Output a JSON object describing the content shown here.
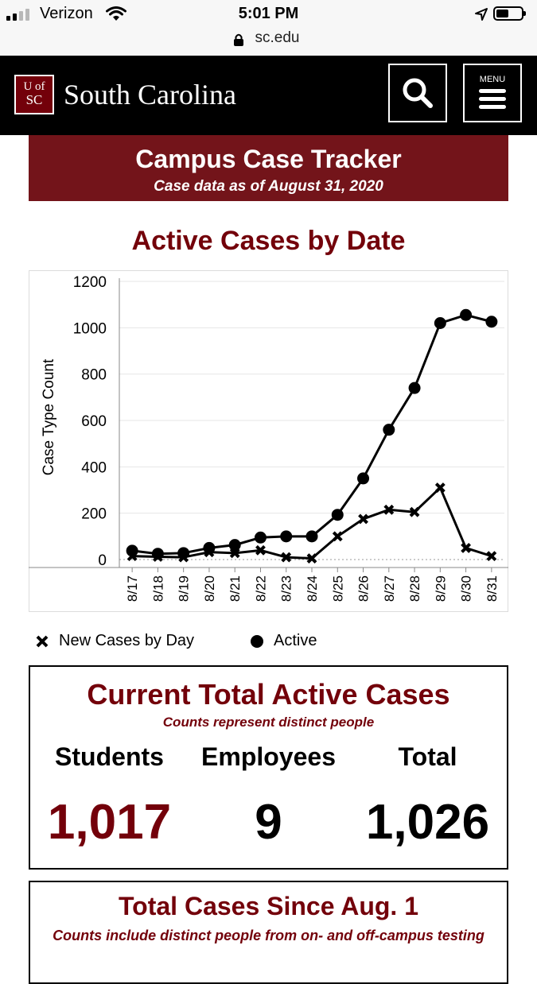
{
  "status_bar": {
    "carrier": "Verizon",
    "time": "5:01 PM",
    "url": "sc.edu"
  },
  "header": {
    "logo_line1": "UofSC",
    "logo_top": "U of",
    "logo_bottom": "SC",
    "brand": "South Carolina",
    "menu_label": "MENU",
    "accent_color": "#73000a"
  },
  "banner": {
    "title": "Campus Case Tracker",
    "subtitle": "Case data as of August 31, 2020"
  },
  "chart_section": {
    "title": "Active Cases by Date"
  },
  "chart_data": {
    "type": "line",
    "title": "Active Cases by Date",
    "ylabel": "Case Type Count",
    "xlabel": "",
    "ylim": [
      0,
      1200
    ],
    "yticks": [
      0,
      200,
      400,
      600,
      800,
      1000,
      1200
    ],
    "grid": true,
    "legend_position": "bottom",
    "categories": [
      "8/17",
      "8/18",
      "8/19",
      "8/20",
      "8/21",
      "8/22",
      "8/23",
      "8/24",
      "8/25",
      "8/26",
      "8/27",
      "8/28",
      "8/29",
      "8/30",
      "8/31"
    ],
    "series": [
      {
        "name": "New Cases by Day",
        "marker": "cross",
        "values": [
          15,
          12,
          10,
          32,
          28,
          40,
          10,
          5,
          100,
          175,
          215,
          205,
          310,
          50,
          15
        ]
      },
      {
        "name": "Active",
        "marker": "dot",
        "values": [
          38,
          25,
          28,
          50,
          63,
          95,
          100,
          100,
          193,
          350,
          560,
          740,
          1020,
          1055,
          1026
        ]
      }
    ]
  },
  "active_box": {
    "title": "Current Total Active Cases",
    "subtitle": "Counts represent distinct people",
    "columns": [
      {
        "label": "Students",
        "value": "1,017"
      },
      {
        "label": "Employees",
        "value": "9"
      },
      {
        "label": "Total",
        "value": "1,026"
      }
    ]
  },
  "total_box": {
    "title": "Total Cases Since Aug. 1",
    "subtitle": "Counts include distinct people from on- and off-campus testing"
  }
}
